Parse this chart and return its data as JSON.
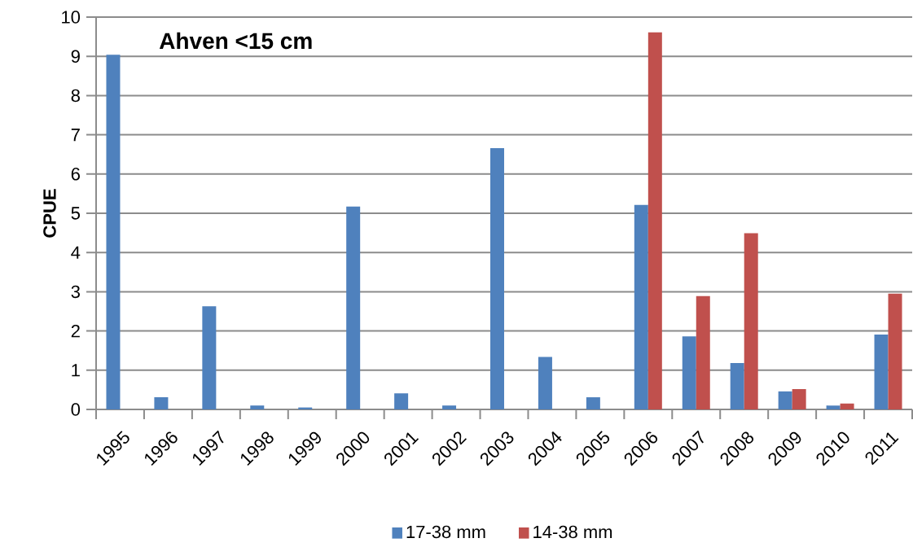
{
  "chart_data": {
    "type": "bar",
    "title": "Ahven <15 cm",
    "ylabel": "CPUE",
    "categories": [
      "1995",
      "1996",
      "1997",
      "1998",
      "1999",
      "2000",
      "2001",
      "2002",
      "2003",
      "2004",
      "2005",
      "2006",
      "2007",
      "2008",
      "2009",
      "2010",
      "2011"
    ],
    "series": [
      {
        "name": "17-38 mm",
        "color": "#4f81bd",
        "values": [
          9.04,
          0.31,
          2.63,
          0.1,
          0.05,
          5.17,
          0.41,
          0.1,
          6.66,
          1.34,
          0.31,
          5.21,
          1.86,
          1.18,
          0.46,
          0.1,
          1.91
        ]
      },
      {
        "name": "14-38 mm",
        "color": "#c0504d",
        "values": [
          null,
          null,
          null,
          null,
          null,
          null,
          null,
          null,
          null,
          null,
          null,
          9.61,
          2.89,
          4.49,
          0.52,
          0.15,
          2.95
        ]
      }
    ],
    "ylim": [
      0,
      10
    ],
    "yticks": [
      0,
      1,
      2,
      3,
      4,
      5,
      6,
      7,
      8,
      9,
      10
    ],
    "grid": "y",
    "legend": "bottom"
  }
}
